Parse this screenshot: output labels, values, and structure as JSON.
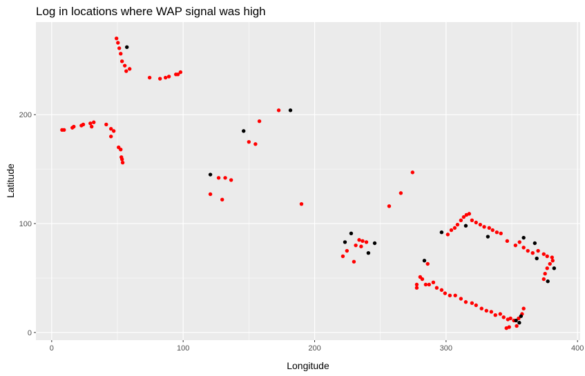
{
  "chart_data": {
    "type": "scatter",
    "title": "Log in locations where WAP signal was high",
    "x_label": "Longitude",
    "y_label": "Latitude",
    "xlim": [
      -12,
      402
    ],
    "ylim": [
      -7,
      285
    ],
    "xticks": [
      0,
      100,
      200,
      300,
      400
    ],
    "yticks": [
      0,
      100,
      200
    ],
    "grid": true,
    "minor_grid": true,
    "panel_color": "#ebebeb",
    "series": [
      {
        "color": "#ff0000",
        "x": [
          49.3,
          50.4,
          51.4,
          52.5,
          53.5,
          55.6,
          56.7,
          59.3,
          74.5,
          82.4,
          86.6,
          89.2,
          96,
          98,
          94.5,
          7.9,
          9.4,
          15.7,
          16.8,
          22.6,
          24,
          29.4,
          32,
          30.4,
          41.5,
          45.1,
          47.2,
          45.1,
          50.9,
          52.5,
          53,
          53.5,
          54,
          120.7,
          127,
          129.7,
          132,
          136.5,
          150,
          155,
          158,
          172.7,
          190,
          256.7,
          265.6,
          274.5,
          221.5,
          224.6,
          229.9,
          231.3,
          233.9,
          235.4,
          236.5,
          239.4,
          301.3,
          304,
          306.6,
          308.7,
          311.3,
          313.4,
          315.5,
          317.6,
          319.7,
          322.8,
          326,
          329,
          332.8,
          335.4,
          338.6,
          341.7,
          346.5,
          352.8,
          355.9,
          359,
          362.2,
          365.9,
          370,
          374.3,
          376.9,
          380.6,
          381.1,
          379,
          376.9,
          375.3,
          374.3,
          286,
          280.3,
          277.7,
          277.7,
          281.9,
          284.5,
          287.1,
          290.3,
          292.9,
          296.6,
          299.2,
          302.9,
          307,
          311.3,
          315,
          319.7,
          322.8,
          327,
          330.7,
          334.4,
          337.5,
          341.2,
          343.8,
          347,
          349,
          351.6,
          353.7,
          355.2,
          357.8,
          359,
          345.9,
          348
        ],
        "values": [
          270,
          266,
          261,
          256,
          249,
          245,
          240,
          242,
          234,
          233,
          234,
          235,
          237,
          239,
          237,
          186,
          186,
          188,
          189,
          190,
          191,
          192,
          193,
          189,
          191,
          187,
          185,
          180,
          170,
          168,
          161,
          159,
          156,
          127,
          142,
          122,
          142,
          140,
          175,
          173,
          194,
          204,
          118,
          116,
          128,
          147,
          70,
          75,
          65,
          80,
          85,
          79,
          84,
          83,
          90,
          94,
          96,
          99,
          103,
          106,
          108,
          109,
          103,
          101,
          99,
          97,
          96,
          94,
          92,
          91,
          84,
          80,
          83,
          78,
          75,
          73,
          75,
          72,
          70,
          69,
          66,
          63,
          59,
          54,
          49,
          63,
          51,
          44,
          41,
          49,
          44,
          44,
          46,
          41,
          39,
          36,
          34,
          34,
          31,
          28,
          27,
          25,
          22,
          20,
          19,
          16,
          17,
          14,
          12,
          13,
          11,
          6,
          13,
          17,
          22,
          4,
          5
        ]
      },
      {
        "color": "#000000",
        "x": [
          57.2,
          120.7,
          146,
          181.6,
          223.1,
          227.8,
          240.9,
          245.7,
          296.6,
          315,
          331.8,
          359,
          367.5,
          369,
          382.2,
          377.4,
          283.5,
          353.2,
          355.7,
          357
        ],
        "values": [
          262,
          145,
          185,
          204,
          83,
          91,
          73,
          82,
          92,
          98,
          88,
          87,
          82,
          68,
          59,
          47,
          66,
          11,
          9,
          15
        ]
      }
    ]
  }
}
